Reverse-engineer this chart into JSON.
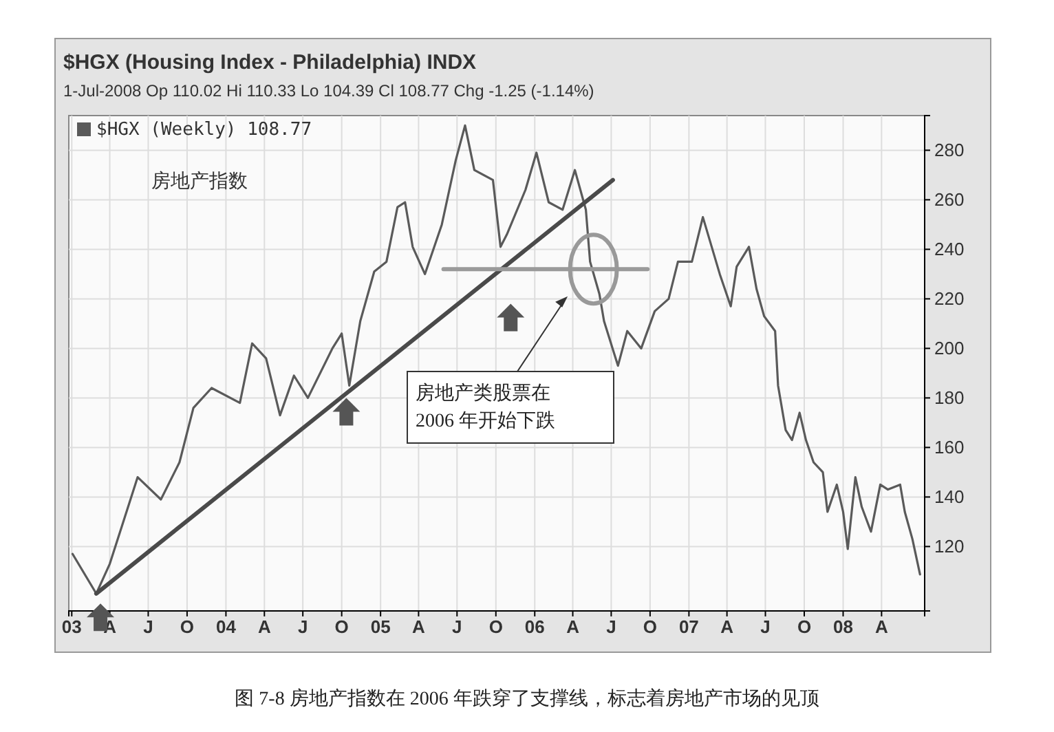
{
  "chart_data": {
    "type": "line",
    "title": "$HGX (Housing Index - Philadelphia) INDX",
    "subtitle": "1-Jul-2008 Op 110.02 Hi 110.33 Lo 104.39 Cl 108.77 Chg -1.25 (-1.14%)",
    "annotations": [
      "房地产指数",
      "房地产类股票在\n2006 年开始下跌",
      "图 7-8 房地产指数在 2006 年跌穿了支撑线，标志着房地产市场的见顶"
    ],
    "series": [
      {
        "name": "$HGX (Weekly) 108.77",
        "color": "#5a5a5a",
        "x": [
          "2003-01-03",
          "2003-02-28",
          "2003-04-01",
          "2003-06-06",
          "2003-07-31",
          "2003-09-13",
          "2003-10-16",
          "2003-11-28",
          "2004-02-03",
          "2004-03-03",
          "2004-04-05",
          "2004-05-08",
          "2004-06-10",
          "2004-07-13",
          "2004-09-09",
          "2004-10-01",
          "2004-10-19",
          "2004-11-14",
          "2004-12-17",
          "2005-01-15",
          "2005-02-10",
          "2005-02-28",
          "2005-03-18",
          "2005-04-16",
          "2005-05-26",
          "2005-06-28",
          "2005-07-20",
          "2005-08-11",
          "2005-09-24",
          "2005-10-12",
          "2005-10-27",
          "2005-12-10",
          "2006-01-05",
          "2006-02-03",
          "2006-03-08",
          "2006-04-06",
          "2006-05-02",
          "2006-05-12",
          "2006-06-03",
          "2006-06-14",
          "2006-07-17",
          "2006-08-08",
          "2006-09-10",
          "2006-10-12",
          "2006-11-14",
          "2006-12-06",
          "2007-01-08",
          "2007-02-03",
          "2007-03-15",
          "2007-04-10",
          "2007-04-24",
          "2007-05-23",
          "2007-06-10",
          "2007-06-28",
          "2007-07-24",
          "2007-07-31",
          "2007-08-18",
          "2007-09-02",
          "2007-09-20",
          "2007-10-05",
          "2007-10-23",
          "2007-11-14",
          "2007-11-25",
          "2007-12-17",
          "2008-01-01",
          "2008-01-12",
          "2008-01-30",
          "2008-02-14",
          "2008-03-07",
          "2008-03-29",
          "2008-04-16",
          "2008-05-15",
          "2008-05-26",
          "2008-06-13",
          "2008-07-01"
        ],
        "values": [
          117,
          101,
          113,
          148,
          139,
          154,
          176,
          184,
          178,
          202,
          196,
          173,
          189,
          180,
          200,
          206,
          185,
          211,
          231,
          235,
          257,
          259,
          241,
          230,
          250,
          276,
          290,
          272,
          268,
          241,
          246,
          264,
          279,
          259,
          256,
          272,
          256,
          235,
          222,
          211,
          193,
          207,
          200,
          215,
          220,
          235,
          235,
          253,
          230,
          217,
          233,
          241,
          224,
          213,
          207,
          185,
          167,
          163,
          174,
          163,
          154,
          150,
          134,
          145,
          134,
          119,
          148,
          136,
          126,
          145,
          143,
          145,
          134,
          123,
          108.77
        ]
      },
      {
        "color": "#4a4a4a",
        "x": [
          "2003-02-28",
          "2006-07-05"
        ],
        "values": [
          101,
          268
        ]
      },
      {
        "color": "#9a9a9a",
        "x": [
          "2005-05-30",
          "2006-09-25"
        ],
        "values": [
          232,
          232
        ]
      }
    ],
    "xlim": [
      "2002-12-25",
      "2008-07-12"
    ],
    "xticks": [
      {
        "value": "2003-01-01",
        "label": "03"
      },
      {
        "value": "2003-04-01",
        "label": "A"
      },
      {
        "value": "2003-07-01",
        "label": "J"
      },
      {
        "value": "2003-10-01",
        "label": "O"
      },
      {
        "value": "2004-01-01",
        "label": "04"
      },
      {
        "value": "2004-04-01",
        "label": "A"
      },
      {
        "value": "2004-07-01",
        "label": "J"
      },
      {
        "value": "2004-10-01",
        "label": "O"
      },
      {
        "value": "2005-01-01",
        "label": "05"
      },
      {
        "value": "2005-04-01",
        "label": "A"
      },
      {
        "value": "2005-07-01",
        "label": "J"
      },
      {
        "value": "2005-10-01",
        "label": "O"
      },
      {
        "value": "2006-01-01",
        "label": "06"
      },
      {
        "value": "2006-04-01",
        "label": "A"
      },
      {
        "value": "2006-07-01",
        "label": "J"
      },
      {
        "value": "2006-10-01",
        "label": "O"
      },
      {
        "value": "2007-01-01",
        "label": "07"
      },
      {
        "value": "2007-04-01",
        "label": "A"
      },
      {
        "value": "2007-07-01",
        "label": "J"
      },
      {
        "value": "2007-10-01",
        "label": "O"
      },
      {
        "value": "2008-01-01",
        "label": "08"
      },
      {
        "value": "2008-04-01",
        "label": "A"
      }
    ],
    "ylim": [
      94,
      294
    ],
    "yticks": [
      120,
      140,
      160,
      180,
      200,
      220,
      240,
      260,
      280
    ],
    "grid": true,
    "legend": "top left",
    "marker": "none",
    "line_style": "solid"
  }
}
